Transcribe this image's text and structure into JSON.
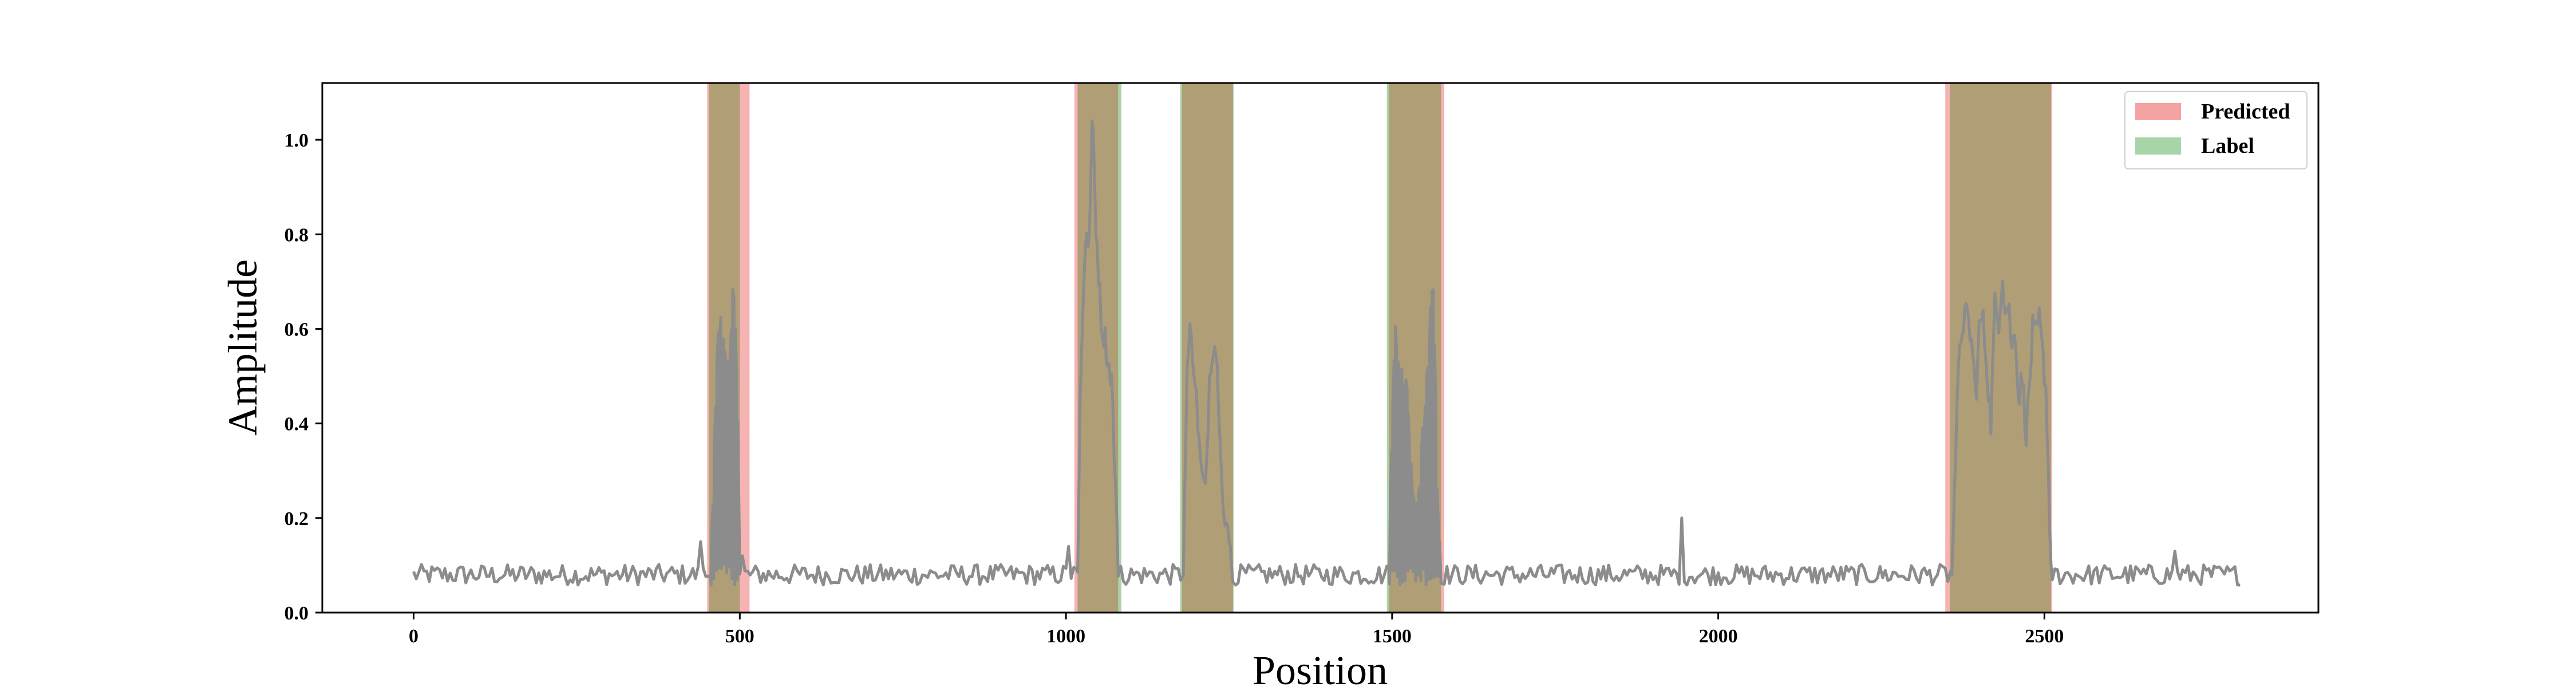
{
  "chart_data": {
    "type": "line",
    "xlabel": "Position",
    "ylabel": "Amplitude",
    "xlim": [
      -140,
      2920
    ],
    "ylim": [
      0.0,
      1.12
    ],
    "xticks": [
      0,
      500,
      1000,
      1500,
      2000,
      2500
    ],
    "xtick_labels": [
      "0",
      "500",
      "1000",
      "1500",
      "2000",
      "2500"
    ],
    "yticks": [
      0.0,
      0.2,
      0.4,
      0.6,
      0.8,
      1.0
    ],
    "ytick_labels": [
      "0.0",
      "0.2",
      "0.4",
      "0.6",
      "0.8",
      "1.0"
    ],
    "grid": false,
    "legend_position": "top-right",
    "legend": [
      {
        "label": "Predicted",
        "color": "#f4a3a3"
      },
      {
        "label": "Label",
        "color": "#a8d5a8"
      }
    ],
    "line_color": "#8c8c8c",
    "predicted_color": "#f08080",
    "label_color": "#70b870",
    "overlap_color": "#b09e76",
    "predicted_regions": [
      [
        450,
        515
      ],
      [
        1013,
        1080
      ],
      [
        1178,
        1256
      ],
      [
        1495,
        1580
      ],
      [
        2348,
        2512
      ]
    ],
    "label_regions": [
      [
        453,
        500
      ],
      [
        1018,
        1085
      ],
      [
        1175,
        1257
      ],
      [
        1492,
        1575
      ],
      [
        2355,
        2510
      ]
    ],
    "signal": {
      "x_range": [
        0,
        2800
      ],
      "baseline": 0.08,
      "noise_amplitude": 0.022,
      "spikes": [
        {
          "x": 440,
          "y": 0.15
        },
        {
          "x": 1005,
          "y": 0.14
        },
        {
          "x": 1945,
          "y": 0.2
        },
        {
          "x": 2700,
          "y": 0.13
        },
        {
          "x": 2360,
          "y": 0.15
        },
        {
          "x": 505,
          "y": 0.12
        }
      ],
      "bursts": [
        {
          "points": [
            [
              455,
              0.08
            ],
            [
              460,
              0.3
            ],
            [
              465,
              0.55
            ],
            [
              470,
              0.61
            ],
            [
              476,
              0.57
            ],
            [
              482,
              0.5
            ],
            [
              486,
              0.58
            ],
            [
              490,
              0.72
            ],
            [
              493,
              0.6
            ],
            [
              497,
              0.4
            ],
            [
              500,
              0.12
            ]
          ]
        },
        {
          "points": [
            [
              1018,
              0.1
            ],
            [
              1022,
              0.45
            ],
            [
              1027,
              0.7
            ],
            [
              1031,
              0.82
            ],
            [
              1034,
              0.75
            ],
            [
              1038,
              0.9
            ],
            [
              1041,
              1.07
            ],
            [
              1045,
              0.85
            ],
            [
              1050,
              0.72
            ],
            [
              1055,
              0.6
            ],
            [
              1060,
              0.58
            ],
            [
              1065,
              0.52
            ],
            [
              1070,
              0.5
            ],
            [
              1075,
              0.3
            ],
            [
              1080,
              0.1
            ]
          ]
        },
        {
          "points": [
            [
              1180,
              0.08
            ],
            [
              1185,
              0.5
            ],
            [
              1190,
              0.59
            ],
            [
              1195,
              0.55
            ],
            [
              1200,
              0.45
            ],
            [
              1207,
              0.3
            ],
            [
              1214,
              0.25
            ],
            [
              1220,
              0.5
            ],
            [
              1225,
              0.57
            ],
            [
              1230,
              0.56
            ],
            [
              1236,
              0.4
            ],
            [
              1242,
              0.2
            ],
            [
              1250,
              0.15
            ],
            [
              1257,
              0.08
            ]
          ]
        },
        {
          "points": [
            [
              1495,
              0.08
            ],
            [
              1500,
              0.42
            ],
            [
              1505,
              0.58
            ],
            [
              1510,
              0.55
            ],
            [
              1516,
              0.48
            ],
            [
              1522,
              0.5
            ],
            [
              1528,
              0.3
            ],
            [
              1535,
              0.22
            ],
            [
              1540,
              0.24
            ],
            [
              1546,
              0.35
            ],
            [
              1552,
              0.45
            ],
            [
              1558,
              0.6
            ],
            [
              1562,
              0.73
            ],
            [
              1566,
              0.52
            ],
            [
              1570,
              0.2
            ],
            [
              1575,
              0.08
            ]
          ]
        },
        {
          "points": [
            [
              2358,
              0.1
            ],
            [
              2363,
              0.3
            ],
            [
              2368,
              0.5
            ],
            [
              2373,
              0.6
            ],
            [
              2378,
              0.63
            ],
            [
              2383,
              0.62
            ],
            [
              2390,
              0.55
            ],
            [
              2395,
              0.45
            ],
            [
              2400,
              0.6
            ],
            [
              2405,
              0.63
            ],
            [
              2410,
              0.55
            ],
            [
              2418,
              0.4
            ],
            [
              2424,
              0.65
            ],
            [
              2430,
              0.62
            ],
            [
              2436,
              0.72
            ],
            [
              2440,
              0.63
            ],
            [
              2445,
              0.66
            ],
            [
              2450,
              0.55
            ],
            [
              2455,
              0.62
            ],
            [
              2460,
              0.45
            ],
            [
              2466,
              0.5
            ],
            [
              2472,
              0.38
            ],
            [
              2478,
              0.5
            ],
            [
              2482,
              0.6
            ],
            [
              2487,
              0.58
            ],
            [
              2492,
              0.62
            ],
            [
              2497,
              0.55
            ],
            [
              2502,
              0.48
            ],
            [
              2506,
              0.3
            ],
            [
              2510,
              0.1
            ]
          ]
        }
      ]
    }
  }
}
